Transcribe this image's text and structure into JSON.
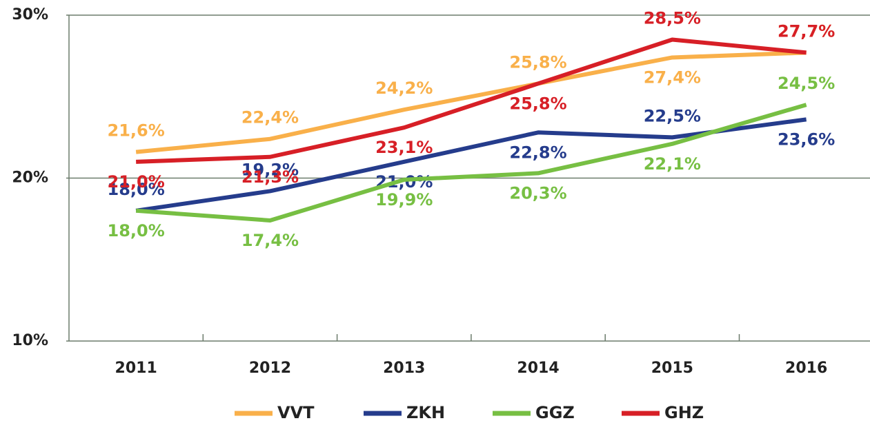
{
  "chart_data": {
    "type": "line",
    "categories": [
      "2011",
      "2012",
      "2013",
      "2014",
      "2015",
      "2016"
    ],
    "series": [
      {
        "name": "VVT",
        "color": "#f9b04a",
        "values": [
          21.6,
          22.4,
          24.2,
          25.8,
          27.4,
          27.7
        ],
        "value_labels": [
          "21,6%",
          "22,4%",
          "24,2%",
          "25,8%",
          "27,4%",
          "27,7%"
        ]
      },
      {
        "name": "ZKH",
        "color": "#253c8c",
        "values": [
          18.0,
          19.2,
          21.0,
          22.8,
          22.5,
          23.6
        ],
        "value_labels": [
          "18,0%",
          "19,2%",
          "21,0%",
          "22,8%",
          "22,5%",
          "23,6%"
        ]
      },
      {
        "name": "GGZ",
        "color": "#77bf43",
        "values": [
          18.0,
          17.4,
          19.9,
          20.3,
          22.1,
          24.5
        ],
        "value_labels": [
          "18,0%",
          "17,4%",
          "19,9%",
          "20,3%",
          "22,1%",
          "24,5%"
        ]
      },
      {
        "name": "GHZ",
        "color": "#d71f26",
        "values": [
          21.0,
          21.3,
          23.1,
          25.8,
          28.5,
          27.7
        ],
        "value_labels": [
          "21,0%",
          "21,3%",
          "23,1%",
          "25,8%",
          "28,5%",
          "27,7%"
        ]
      }
    ],
    "ylim": [
      10,
      30
    ],
    "yticks": [
      {
        "value": 10,
        "label": "10%"
      },
      {
        "value": 20,
        "label": "20%"
      },
      {
        "value": 30,
        "label": "30%"
      }
    ],
    "grid": true,
    "legend": "bottom"
  }
}
